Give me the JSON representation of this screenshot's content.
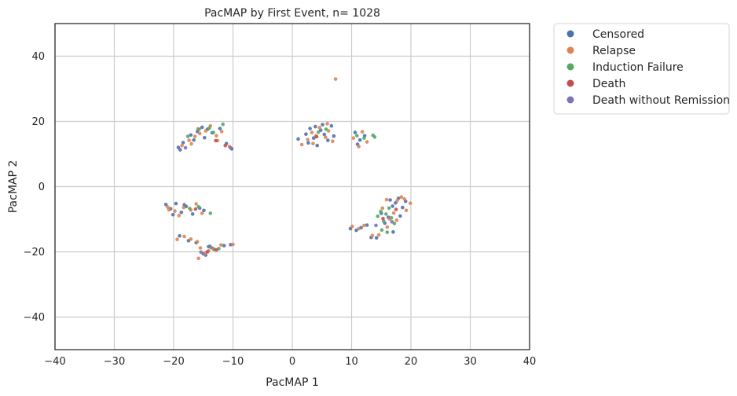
{
  "chart_data": {
    "type": "scatter",
    "title": "PacMAP by First Event, n= 1028",
    "xlabel": "PacMAP 1",
    "ylabel": "PacMAP 2",
    "xlim": [
      -40,
      40
    ],
    "ylim": [
      -50,
      50
    ],
    "xticks": [
      -40,
      -30,
      -20,
      -10,
      0,
      10,
      20,
      30,
      40
    ],
    "yticks": [
      -40,
      -20,
      0,
      20,
      40
    ],
    "grid": true,
    "legend_position": "outside-top-right",
    "series": [
      {
        "name": "Censored",
        "color": "#4c72b0",
        "points": [
          [
            -19.2,
            12.0
          ],
          [
            -18.4,
            13.5
          ],
          [
            -17.1,
            15.8
          ],
          [
            -16.0,
            16.9
          ],
          [
            -15.2,
            18.2
          ],
          [
            -14.3,
            17.6
          ],
          [
            -13.5,
            16.5
          ],
          [
            -12.2,
            17.8
          ],
          [
            -11.1,
            13.2
          ],
          [
            -10.2,
            11.6
          ],
          [
            -18.9,
            11.3
          ],
          [
            -16.6,
            14.3
          ],
          [
            -14.8,
            15.0
          ],
          [
            -21.3,
            -5.5
          ],
          [
            -20.5,
            -6.8
          ],
          [
            -19.6,
            -5.2
          ],
          [
            -18.7,
            -7.9
          ],
          [
            -17.9,
            -6.1
          ],
          [
            -16.8,
            -8.4
          ],
          [
            -15.6,
            -6.6
          ],
          [
            -14.9,
            -7.3
          ],
          [
            -20.1,
            -8.6
          ],
          [
            -18.2,
            -5.6
          ],
          [
            -19.0,
            -15.1
          ],
          [
            -17.5,
            -16.6
          ],
          [
            -16.2,
            -17.2
          ],
          [
            -15.0,
            -20.6
          ],
          [
            -14.1,
            -18.4
          ],
          [
            -13.2,
            -19.2
          ],
          [
            -11.5,
            -18.1
          ],
          [
            -10.4,
            -17.8
          ],
          [
            -14.6,
            -21.0
          ],
          [
            1.0,
            14.6
          ],
          [
            2.3,
            16.1
          ],
          [
            3.0,
            17.8
          ],
          [
            3.6,
            14.9
          ],
          [
            4.2,
            12.6
          ],
          [
            4.8,
            17.3
          ],
          [
            5.4,
            16.0
          ],
          [
            6.0,
            14.2
          ],
          [
            6.6,
            18.6
          ],
          [
            7.0,
            15.5
          ],
          [
            2.7,
            13.4
          ],
          [
            5.1,
            19.0
          ],
          [
            3.9,
            18.4
          ],
          [
            10.6,
            16.6
          ],
          [
            11.4,
            14.3
          ],
          [
            12.2,
            15.6
          ],
          [
            11.0,
            13.0
          ],
          [
            9.8,
            -12.9
          ],
          [
            10.8,
            -13.4
          ],
          [
            11.6,
            -12.6
          ],
          [
            12.6,
            -11.8
          ],
          [
            13.3,
            -15.6
          ],
          [
            14.2,
            -15.7
          ],
          [
            15.6,
            -11.2
          ],
          [
            16.2,
            -9.4
          ],
          [
            16.9,
            -6.0
          ],
          [
            17.4,
            -5.0
          ],
          [
            17.9,
            -3.6
          ],
          [
            18.6,
            -6.4
          ],
          [
            19.1,
            -4.5
          ],
          [
            15.0,
            -8.2
          ],
          [
            17.0,
            -13.9
          ],
          [
            18.2,
            -9.0
          ],
          [
            16.5,
            -4.1
          ]
        ]
      },
      {
        "name": "Relapse",
        "color": "#dd8452",
        "points": [
          [
            -18.6,
            12.6
          ],
          [
            -17.4,
            14.2
          ],
          [
            -16.4,
            15.4
          ],
          [
            -15.6,
            16.3
          ],
          [
            -14.6,
            17.1
          ],
          [
            -13.8,
            18.6
          ],
          [
            -12.8,
            15.6
          ],
          [
            -11.9,
            16.9
          ],
          [
            -12.6,
            14.1
          ],
          [
            -10.6,
            12.3
          ],
          [
            -17.0,
            13.1
          ],
          [
            -15.9,
            17.7
          ],
          [
            -21.0,
            -6.3
          ],
          [
            -19.8,
            -7.5
          ],
          [
            -19.1,
            -8.9
          ],
          [
            -18.3,
            -6.4
          ],
          [
            -17.1,
            -7.2
          ],
          [
            -16.2,
            -5.3
          ],
          [
            -15.2,
            -8.2
          ],
          [
            -20.8,
            -7.1
          ],
          [
            -19.4,
            -16.2
          ],
          [
            -18.2,
            -15.3
          ],
          [
            -17.1,
            -16.1
          ],
          [
            -16.0,
            -16.9
          ],
          [
            -15.5,
            -18.8
          ],
          [
            -14.7,
            -20.4
          ],
          [
            -13.4,
            -18.9
          ],
          [
            -12.0,
            -17.9
          ],
          [
            -10.0,
            -17.7
          ],
          [
            -15.8,
            -22.0
          ],
          [
            -14.1,
            -19.7
          ],
          [
            1.6,
            12.9
          ],
          [
            2.6,
            14.4
          ],
          [
            3.3,
            16.6
          ],
          [
            4.0,
            15.6
          ],
          [
            4.6,
            18.1
          ],
          [
            5.6,
            15.1
          ],
          [
            6.1,
            17.1
          ],
          [
            6.8,
            13.9
          ],
          [
            7.3,
            33.0
          ],
          [
            3.5,
            13.2
          ],
          [
            5.9,
            19.3
          ],
          [
            10.3,
            14.9
          ],
          [
            11.8,
            16.8
          ],
          [
            12.6,
            13.7
          ],
          [
            11.2,
            12.3
          ],
          [
            10.1,
            -12.2
          ],
          [
            11.2,
            -12.9
          ],
          [
            12.1,
            -11.9
          ],
          [
            13.5,
            -15.0
          ],
          [
            14.6,
            -14.8
          ],
          [
            15.2,
            -6.6
          ],
          [
            15.9,
            -4.0
          ],
          [
            16.4,
            -9.9
          ],
          [
            17.1,
            -8.1
          ],
          [
            17.7,
            -4.3
          ],
          [
            18.4,
            -3.2
          ],
          [
            19.2,
            -7.3
          ],
          [
            19.9,
            -5.1
          ],
          [
            16.0,
            -12.4
          ],
          [
            17.6,
            -10.3
          ],
          [
            18.9,
            -3.8
          ]
        ]
      },
      {
        "name": "Induction Failure",
        "color": "#55a868",
        "points": [
          [
            -17.6,
            15.4
          ],
          [
            -15.7,
            17.6
          ],
          [
            -13.3,
            16.6
          ],
          [
            -11.7,
            19.1
          ],
          [
            -14.0,
            17.9
          ],
          [
            -17.3,
            -6.7
          ],
          [
            -15.8,
            -6.2
          ],
          [
            -13.8,
            -8.2
          ],
          [
            -13.7,
            -18.7
          ],
          [
            -12.4,
            -19.0
          ],
          [
            4.4,
            16.7
          ],
          [
            5.7,
            17.6
          ],
          [
            10.9,
            15.6
          ],
          [
            12.1,
            14.9
          ],
          [
            13.6,
            15.7
          ],
          [
            13.9,
            15.2
          ],
          [
            14.9,
            -7.6
          ],
          [
            15.4,
            -10.6
          ],
          [
            15.8,
            -8.4
          ],
          [
            16.3,
            -6.6
          ],
          [
            16.7,
            -9.6
          ],
          [
            17.2,
            -11.3
          ],
          [
            15.1,
            -13.3
          ],
          [
            16.0,
            -14.0
          ],
          [
            14.4,
            -9.1
          ]
        ]
      },
      {
        "name": "Death",
        "color": "#c44e52",
        "points": [
          [
            -12.9,
            14.1
          ],
          [
            -11.3,
            12.6
          ],
          [
            -16.3,
            -6.9
          ],
          [
            -14.3,
            -20.0
          ],
          [
            -12.8,
            -19.4
          ],
          [
            4.1,
            15.3
          ],
          [
            15.3,
            -9.8
          ],
          [
            17.5,
            -7.0
          ]
        ]
      },
      {
        "name": "Death without Remission",
        "color": "#8172b3",
        "points": [
          [
            -18.0,
            11.9
          ],
          [
            -10.4,
            11.9
          ],
          [
            -15.4,
            -20.1
          ],
          [
            -13.9,
            -18.3
          ],
          [
            14.1,
            -11.9
          ],
          [
            16.8,
            -10.8
          ]
        ]
      }
    ]
  }
}
